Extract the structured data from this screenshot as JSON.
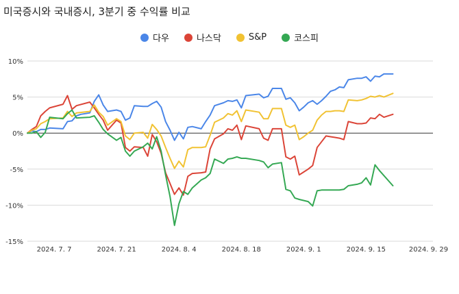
{
  "chart_data": {
    "type": "line",
    "title": "미국증시와 국내증시, 3분기 중 수익률 비교",
    "x_tick_labels": [
      "2024. 7. 7",
      "2024. 7. 21",
      "2024. 8. 4",
      "2024. 8. 18",
      "2024. 9. 1",
      "2024. 9. 15",
      "2024. 9. 29"
    ],
    "x_tick_days": [
      7,
      21,
      35,
      49,
      63,
      77,
      91
    ],
    "y_tick_labels": [
      "10%",
      "5%",
      "0%",
      "-5%",
      "-10%",
      "-15%"
    ],
    "y_tick_values": [
      10,
      5,
      0,
      -5,
      -10,
      -15
    ],
    "ylim": [
      -15,
      10
    ],
    "xlim_days": [
      1,
      92
    ],
    "grid": true,
    "legend_position": "top",
    "series": [
      {
        "name": "다우",
        "color": "#4a86e8",
        "points": [
          [
            1,
            0
          ],
          [
            2,
            0.3
          ],
          [
            3,
            0.2
          ],
          [
            4,
            0.5
          ],
          [
            5,
            0.5
          ],
          [
            6,
            0.7
          ],
          [
            9,
            0.6
          ],
          [
            10,
            1.6
          ],
          [
            11,
            1.7
          ],
          [
            12,
            2.4
          ],
          [
            13,
            2.6
          ],
          [
            15,
            2.8
          ],
          [
            16,
            4.4
          ],
          [
            17,
            5.3
          ],
          [
            18,
            3.9
          ],
          [
            19,
            3.0
          ],
          [
            21,
            3.2
          ],
          [
            22,
            3.0
          ],
          [
            23,
            1.8
          ],
          [
            24,
            2.1
          ],
          [
            25,
            3.8
          ],
          [
            27,
            3.7
          ],
          [
            28,
            3.7
          ],
          [
            29,
            4.1
          ],
          [
            30,
            4.4
          ],
          [
            31,
            3.6
          ],
          [
            32,
            1.6
          ],
          [
            33,
            0.4
          ],
          [
            34,
            -1.0
          ],
          [
            35,
            0.1
          ],
          [
            36,
            -0.8
          ],
          [
            37,
            0.8
          ],
          [
            38,
            0.9
          ],
          [
            40,
            0.6
          ],
          [
            41,
            1.6
          ],
          [
            42,
            2.5
          ],
          [
            43,
            3.8
          ],
          [
            45,
            4.2
          ],
          [
            46,
            4.5
          ],
          [
            47,
            4.4
          ],
          [
            48,
            4.6
          ],
          [
            49,
            3.5
          ],
          [
            50,
            5.2
          ],
          [
            53,
            5.4
          ],
          [
            54,
            4.9
          ],
          [
            55,
            5.1
          ],
          [
            56,
            6.2
          ],
          [
            58,
            6.2
          ],
          [
            59,
            4.7
          ],
          [
            60,
            4.9
          ],
          [
            61,
            4.2
          ],
          [
            62,
            3.1
          ],
          [
            63,
            3.6
          ],
          [
            64,
            4.2
          ],
          [
            65,
            4.5
          ],
          [
            66,
            4.0
          ],
          [
            67,
            4.5
          ],
          [
            68,
            5.1
          ],
          [
            69,
            5.8
          ],
          [
            70,
            6.0
          ],
          [
            71,
            6.4
          ],
          [
            72,
            6.3
          ],
          [
            73,
            7.4
          ],
          [
            75,
            7.6
          ],
          [
            76,
            7.6
          ],
          [
            77,
            7.8
          ],
          [
            78,
            7.2
          ],
          [
            79,
            7.9
          ],
          [
            80,
            7.8
          ],
          [
            81,
            8.2
          ],
          [
            83,
            8.2
          ]
        ]
      },
      {
        "name": "나스닥",
        "color": "#db4437",
        "points": [
          [
            1,
            0
          ],
          [
            2,
            0.5
          ],
          [
            3,
            0.9
          ],
          [
            4,
            2.4
          ],
          [
            5,
            3.0
          ],
          [
            6,
            3.5
          ],
          [
            9,
            4.0
          ],
          [
            10,
            5.2
          ],
          [
            11,
            3.3
          ],
          [
            12,
            3.8
          ],
          [
            15,
            4.3
          ],
          [
            16,
            3.5
          ],
          [
            17,
            2.6
          ],
          [
            18,
            1.8
          ],
          [
            19,
            0.4
          ],
          [
            21,
            1.8
          ],
          [
            22,
            1.4
          ],
          [
            23,
            -2.0
          ],
          [
            24,
            -2.5
          ],
          [
            25,
            -1.9
          ],
          [
            27,
            -2.0
          ],
          [
            28,
            -3.2
          ],
          [
            29,
            -0.2
          ],
          [
            30,
            -1.2
          ],
          [
            31,
            -2.8
          ],
          [
            32,
            -5.5
          ],
          [
            33,
            -7.0
          ],
          [
            34,
            -8.5
          ],
          [
            35,
            -7.6
          ],
          [
            36,
            -8.6
          ],
          [
            37,
            -6.0
          ],
          [
            38,
            -5.6
          ],
          [
            40,
            -5.5
          ],
          [
            41,
            -5.4
          ],
          [
            42,
            -2.2
          ],
          [
            43,
            -0.8
          ],
          [
            45,
            -0.1
          ],
          [
            46,
            0.6
          ],
          [
            47,
            0.4
          ],
          [
            48,
            1.1
          ],
          [
            49,
            -0.9
          ],
          [
            50,
            1.0
          ],
          [
            53,
            0.6
          ],
          [
            54,
            -0.7
          ],
          [
            55,
            -1.0
          ],
          [
            56,
            0.6
          ],
          [
            58,
            0.6
          ],
          [
            59,
            -3.3
          ],
          [
            60,
            -3.6
          ],
          [
            61,
            -3.2
          ],
          [
            62,
            -5.8
          ],
          [
            63,
            -5.4
          ],
          [
            64,
            -5.0
          ],
          [
            65,
            -4.5
          ],
          [
            66,
            -2.0
          ],
          [
            67,
            -1.2
          ],
          [
            68,
            -0.4
          ],
          [
            69,
            -0.5
          ],
          [
            70,
            -0.6
          ],
          [
            71,
            -0.7
          ],
          [
            72,
            -0.9
          ],
          [
            73,
            1.6
          ],
          [
            75,
            1.3
          ],
          [
            76,
            1.3
          ],
          [
            77,
            1.4
          ],
          [
            78,
            2.1
          ],
          [
            79,
            2.0
          ],
          [
            80,
            2.6
          ],
          [
            81,
            2.2
          ],
          [
            83,
            2.6
          ]
        ]
      },
      {
        "name": "S&P",
        "color": "#f1c232",
        "points": [
          [
            1,
            0
          ],
          [
            2,
            0.4
          ],
          [
            3,
            0.6
          ],
          [
            4,
            1.3
          ],
          [
            5,
            1.6
          ],
          [
            6,
            2.0
          ],
          [
            9,
            2.1
          ],
          [
            10,
            3.0
          ],
          [
            11,
            2.3
          ],
          [
            12,
            2.8
          ],
          [
            15,
            3.0
          ],
          [
            16,
            3.9
          ],
          [
            17,
            2.9
          ],
          [
            18,
            2.3
          ],
          [
            19,
            1.1
          ],
          [
            21,
            2.0
          ],
          [
            22,
            1.6
          ],
          [
            23,
            -0.4
          ],
          [
            24,
            -0.9
          ],
          [
            25,
            0
          ],
          [
            27,
            0.1
          ],
          [
            28,
            -0.7
          ],
          [
            29,
            1.2
          ],
          [
            30,
            0.5
          ],
          [
            31,
            -0.4
          ],
          [
            32,
            -2.0
          ],
          [
            33,
            -3.5
          ],
          [
            34,
            -4.9
          ],
          [
            35,
            -3.9
          ],
          [
            36,
            -4.7
          ],
          [
            37,
            -2.3
          ],
          [
            38,
            -2.0
          ],
          [
            40,
            -2.0
          ],
          [
            41,
            -1.9
          ],
          [
            42,
            -0.3
          ],
          [
            43,
            1.5
          ],
          [
            45,
            2.1
          ],
          [
            46,
            2.7
          ],
          [
            47,
            2.5
          ],
          [
            48,
            3.1
          ],
          [
            49,
            1.6
          ],
          [
            50,
            3.2
          ],
          [
            53,
            2.9
          ],
          [
            54,
            2.0
          ],
          [
            55,
            2.0
          ],
          [
            56,
            3.4
          ],
          [
            58,
            3.4
          ],
          [
            59,
            1.1
          ],
          [
            60,
            0.8
          ],
          [
            61,
            1.1
          ],
          [
            62,
            -0.9
          ],
          [
            63,
            -0.5
          ],
          [
            64,
            0
          ],
          [
            65,
            0.4
          ],
          [
            66,
            1.8
          ],
          [
            67,
            2.5
          ],
          [
            68,
            3.0
          ],
          [
            69,
            3.0
          ],
          [
            70,
            3.1
          ],
          [
            71,
            3.1
          ],
          [
            72,
            3.0
          ],
          [
            73,
            4.6
          ],
          [
            75,
            4.5
          ],
          [
            76,
            4.6
          ],
          [
            77,
            4.8
          ],
          [
            78,
            5.1
          ],
          [
            79,
            5.0
          ],
          [
            80,
            5.2
          ],
          [
            81,
            5.0
          ],
          [
            83,
            5.5
          ]
        ]
      },
      {
        "name": "코스피",
        "color": "#34a853",
        "points": [
          [
            1,
            0
          ],
          [
            2,
            0
          ],
          [
            3,
            0.2
          ],
          [
            4,
            -0.6
          ],
          [
            5,
            0.1
          ],
          [
            6,
            2.2
          ],
          [
            9,
            2.0
          ],
          [
            10,
            2.7
          ],
          [
            11,
            3.2
          ],
          [
            12,
            2.1
          ],
          [
            15,
            2.2
          ],
          [
            16,
            2.4
          ],
          [
            17,
            1.5
          ],
          [
            18,
            0.5
          ],
          [
            19,
            -0.1
          ],
          [
            21,
            -1.0
          ],
          [
            22,
            -0.6
          ],
          [
            23,
            -2.5
          ],
          [
            24,
            -3.2
          ],
          [
            25,
            -2.5
          ],
          [
            27,
            -1.9
          ],
          [
            28,
            -1.4
          ],
          [
            29,
            -2.2
          ],
          [
            30,
            -0.5
          ],
          [
            31,
            -2.5
          ],
          [
            32,
            -5.8
          ],
          [
            33,
            -8.8
          ],
          [
            34,
            -12.8
          ],
          [
            35,
            -9.8
          ],
          [
            36,
            -8.1
          ],
          [
            37,
            -8.5
          ],
          [
            38,
            -7.6
          ],
          [
            40,
            -6.5
          ],
          [
            41,
            -6.2
          ],
          [
            42,
            -5.6
          ],
          [
            43,
            -3.6
          ],
          [
            45,
            -4.2
          ],
          [
            46,
            -3.6
          ],
          [
            47,
            -3.5
          ],
          [
            48,
            -3.3
          ],
          [
            49,
            -3.5
          ],
          [
            50,
            -3.5
          ],
          [
            53,
            -3.8
          ],
          [
            54,
            -4.0
          ],
          [
            55,
            -4.8
          ],
          [
            56,
            -4.3
          ],
          [
            58,
            -4.1
          ],
          [
            59,
            -7.8
          ],
          [
            60,
            -8.0
          ],
          [
            61,
            -9.0
          ],
          [
            62,
            -9.2
          ],
          [
            64,
            -9.5
          ],
          [
            65,
            -10.1
          ],
          [
            66,
            -8.0
          ],
          [
            67,
            -7.9
          ],
          [
            70,
            -7.9
          ],
          [
            71,
            -7.9
          ],
          [
            72,
            -7.8
          ],
          [
            73,
            -7.3
          ],
          [
            75,
            -7.1
          ],
          [
            76,
            -6.9
          ],
          [
            77,
            -6.2
          ],
          [
            78,
            -7.2
          ],
          [
            79,
            -4.4
          ],
          [
            80,
            -5.2
          ],
          [
            83,
            -7.3
          ]
        ]
      }
    ]
  }
}
